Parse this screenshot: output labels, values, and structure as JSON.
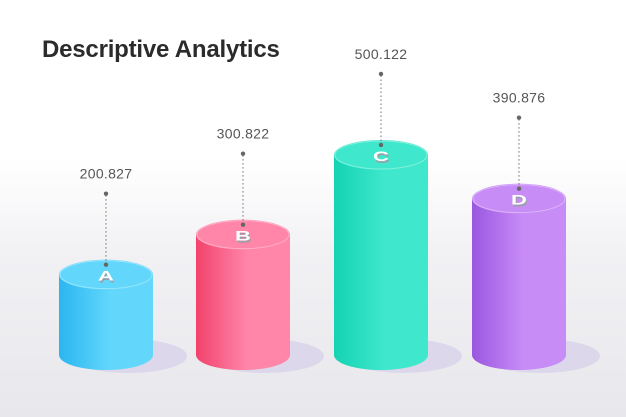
{
  "title": "Descriptive Analytics",
  "chart_data": {
    "type": "bar",
    "title": "Descriptive Analytics",
    "categories": [
      "A",
      "B",
      "C",
      "D"
    ],
    "values": [
      200.827,
      300.822,
      500.122,
      390.876
    ],
    "value_labels": [
      "200.827",
      "300.822",
      "500.122",
      "390.876"
    ],
    "colors": {
      "A": [
        "#2bb6f0",
        "#63d7fb"
      ],
      "B": [
        "#f2426c",
        "#ff86a9"
      ],
      "C": [
        "#14d3b3",
        "#3fe8cc"
      ],
      "D": [
        "#9a57e0",
        "#c88cf7"
      ]
    },
    "grid": false,
    "legend": "none"
  }
}
